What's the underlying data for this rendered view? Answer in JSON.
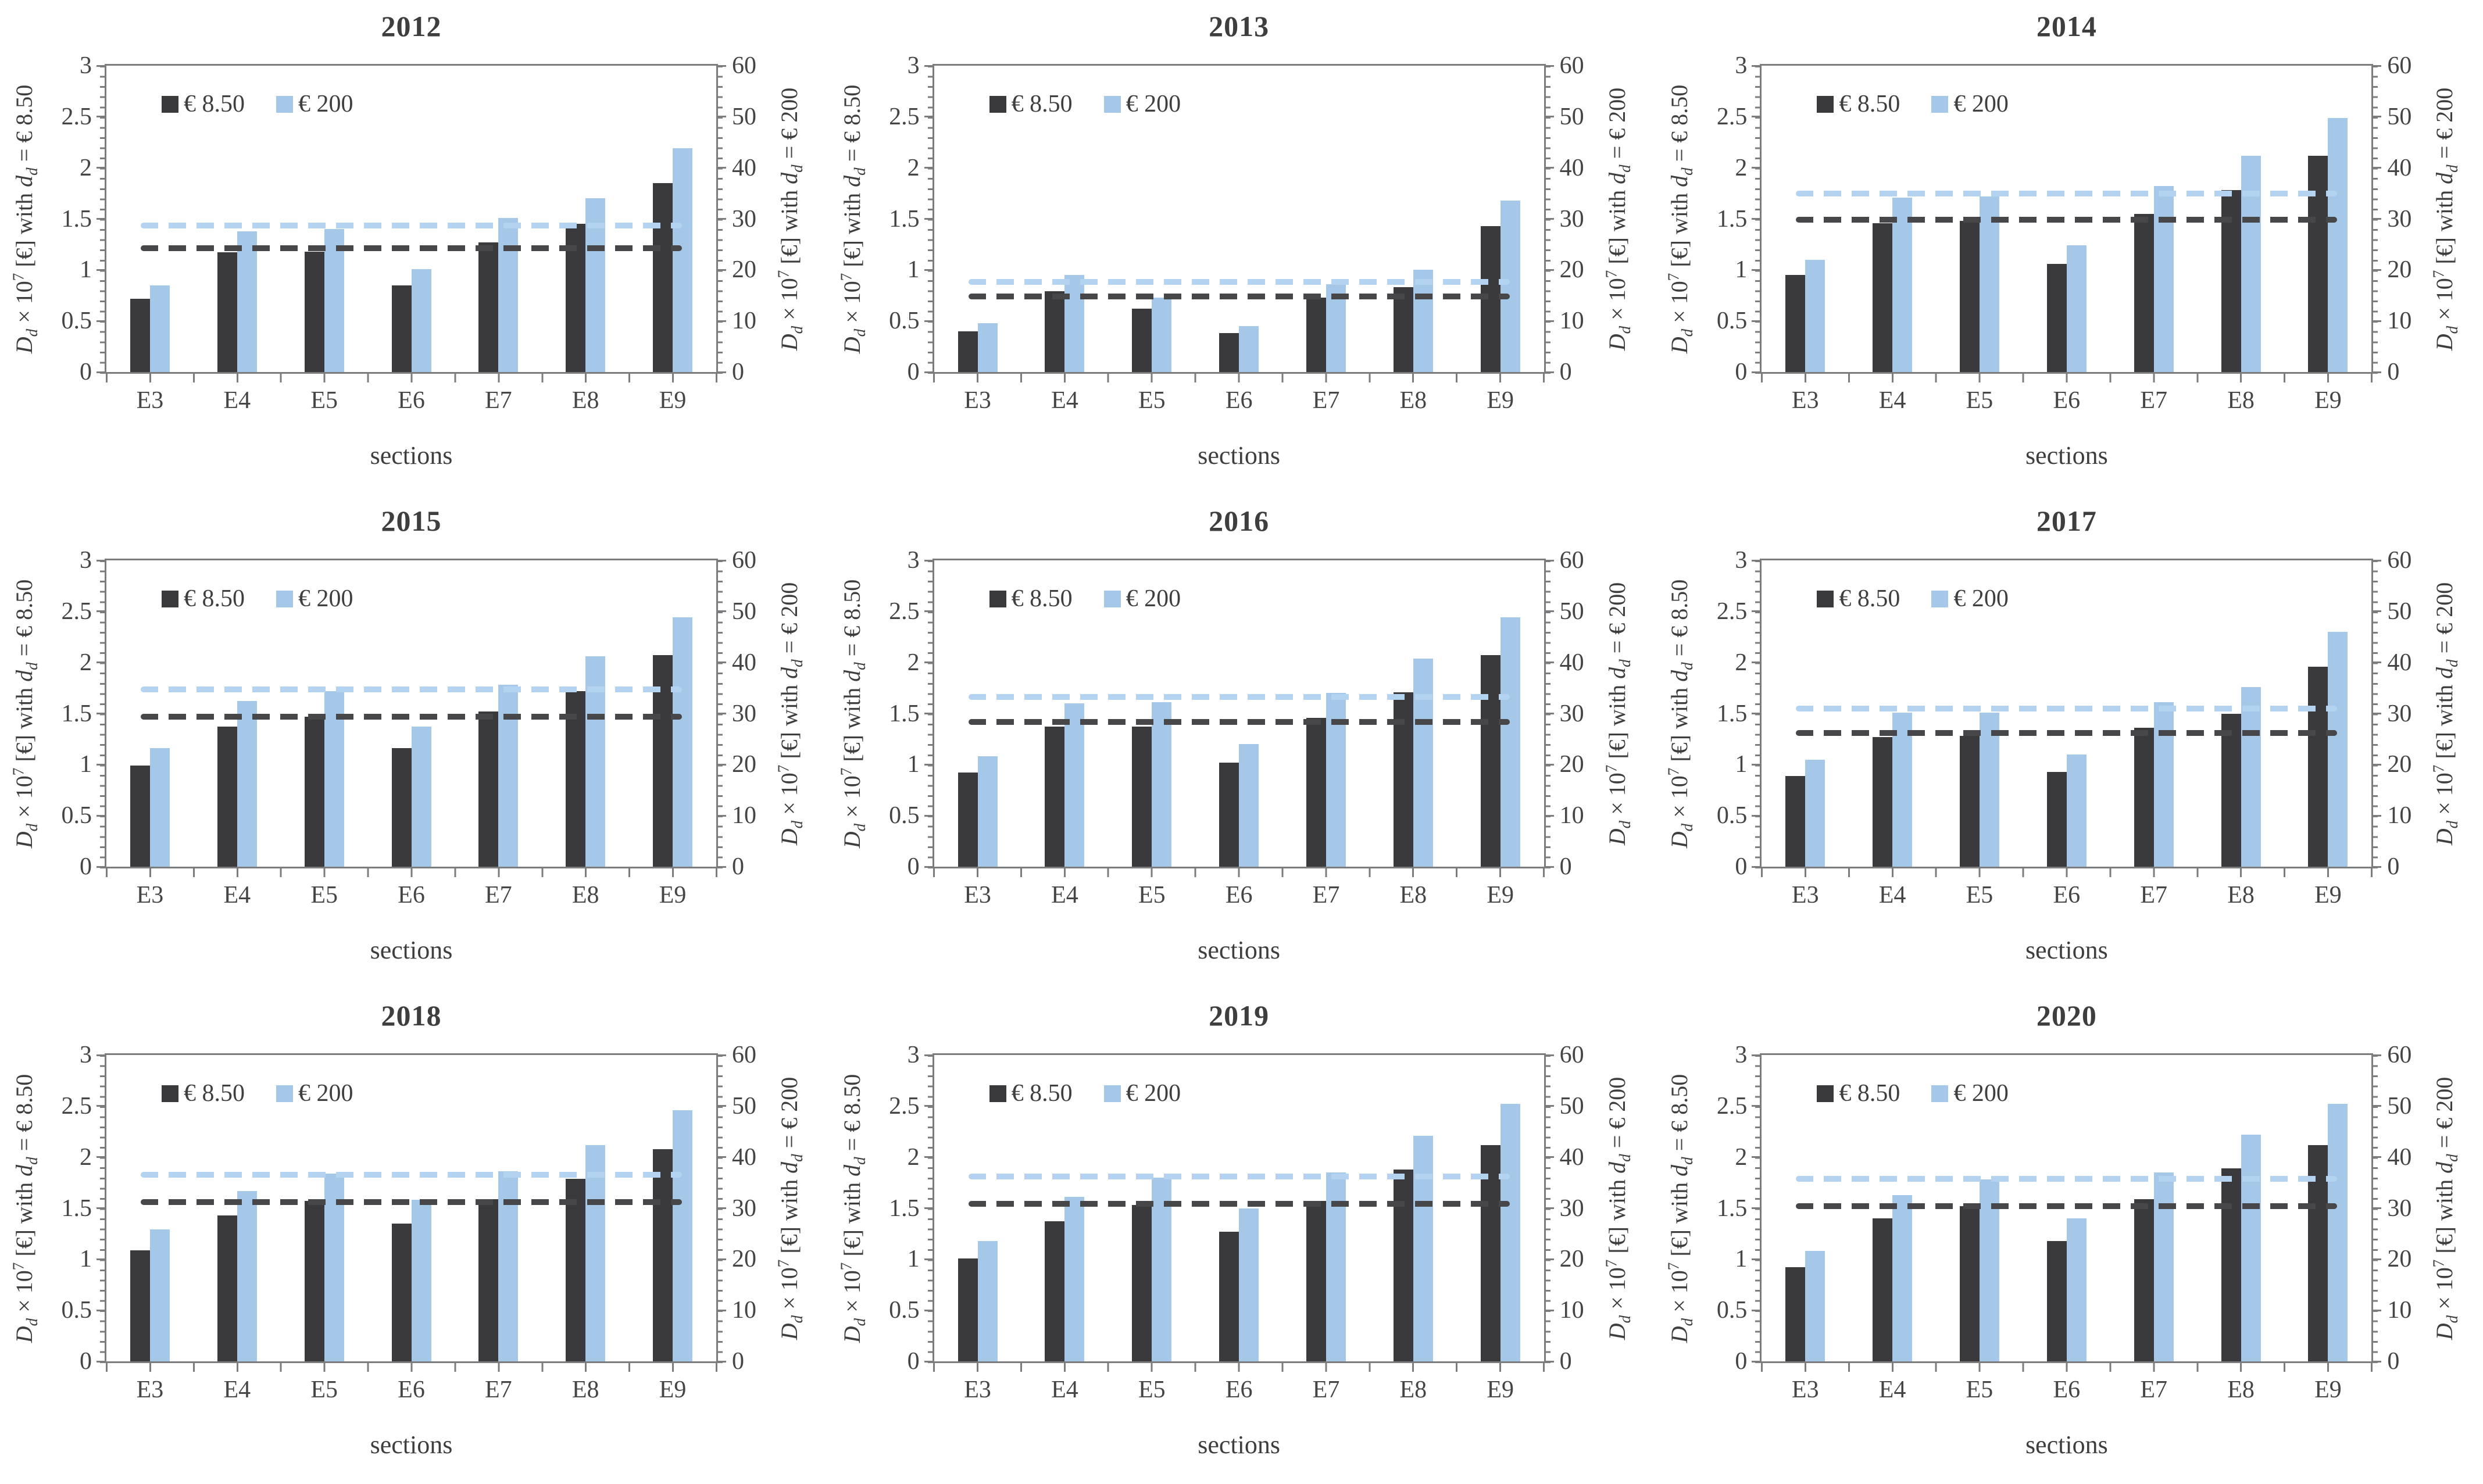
{
  "figure": {
    "grid": {
      "rows": 3,
      "cols": 3
    },
    "legend": {
      "items": [
        {
          "label": "€ 8.50",
          "swatch": "dark_bar"
        },
        {
          "label": "€ 200",
          "swatch": "blue_bar"
        }
      ]
    },
    "axes": {
      "left": {
        "label": "D_d × 10^7 [€] with d_d = € 8.50",
        "ticks": [
          3,
          2.5,
          2,
          1.5,
          1,
          0.5,
          0
        ],
        "range": [
          0,
          3
        ],
        "minor_step": 0.1
      },
      "right": {
        "label": "D_d × 10^7 [€] with d_d = € 200",
        "ticks": [
          60,
          50,
          40,
          30,
          20,
          10,
          0
        ],
        "range": [
          0,
          60
        ],
        "minor_step": 2
      },
      "x": {
        "label": "sections",
        "categories": [
          "E3",
          "E4",
          "E5",
          "E6",
          "E7",
          "E8",
          "E9"
        ]
      }
    },
    "colors": {
      "dark_bar": "#3a3a3c",
      "blue_bar": "#a5c8e9",
      "dark_dash": "#47474a",
      "blue_dash": "#b3d3f0",
      "axis": "#7b7c7e",
      "text": "#3e3e3e"
    }
  },
  "chart_data": [
    {
      "type": "bar",
      "title": "2012",
      "categories": [
        "E3",
        "E4",
        "E5",
        "E6",
        "E7",
        "E8",
        "E9"
      ],
      "series": [
        {
          "name": "€ 8.50",
          "axis": "left",
          "values": [
            0.72,
            1.17,
            1.18,
            0.85,
            1.27,
            1.45,
            1.85
          ]
        },
        {
          "name": "€ 200",
          "axis": "right",
          "values": [
            17.0,
            27.6,
            28.0,
            20.2,
            30.2,
            34.0,
            43.8
          ]
        }
      ],
      "mean_lines": [
        {
          "series": "€ 8.50",
          "axis": "left",
          "value": 1.21
        },
        {
          "series": "€ 200",
          "axis": "right",
          "value": 28.7
        }
      ]
    },
    {
      "type": "bar",
      "title": "2013",
      "categories": [
        "E3",
        "E4",
        "E5",
        "E6",
        "E7",
        "E8",
        "E9"
      ],
      "series": [
        {
          "name": "€ 8.50",
          "axis": "left",
          "values": [
            0.4,
            0.79,
            0.62,
            0.38,
            0.73,
            0.83,
            1.43
          ]
        },
        {
          "name": "€ 200",
          "axis": "right",
          "values": [
            9.6,
            19.0,
            14.6,
            9.0,
            17.2,
            20.0,
            33.6
          ]
        }
      ],
      "mean_lines": [
        {
          "series": "€ 8.50",
          "axis": "left",
          "value": 0.74
        },
        {
          "series": "€ 200",
          "axis": "right",
          "value": 17.6
        }
      ]
    },
    {
      "type": "bar",
      "title": "2014",
      "categories": [
        "E3",
        "E4",
        "E5",
        "E6",
        "E7",
        "E8",
        "E9"
      ],
      "series": [
        {
          "name": "€ 8.50",
          "axis": "left",
          "values": [
            0.95,
            1.46,
            1.48,
            1.06,
            1.55,
            1.78,
            2.12
          ]
        },
        {
          "name": "€ 200",
          "axis": "right",
          "values": [
            22.0,
            34.2,
            34.4,
            24.8,
            36.4,
            42.4,
            49.8
          ]
        }
      ],
      "mean_lines": [
        {
          "series": "€ 8.50",
          "axis": "left",
          "value": 1.49
        },
        {
          "series": "€ 200",
          "axis": "right",
          "value": 34.9
        }
      ]
    },
    {
      "type": "bar",
      "title": "2015",
      "categories": [
        "E3",
        "E4",
        "E5",
        "E6",
        "E7",
        "E8",
        "E9"
      ],
      "series": [
        {
          "name": "€ 8.50",
          "axis": "left",
          "values": [
            0.99,
            1.37,
            1.47,
            1.16,
            1.52,
            1.72,
            2.07
          ]
        },
        {
          "name": "€ 200",
          "axis": "right",
          "values": [
            23.2,
            32.4,
            34.4,
            27.4,
            35.6,
            41.2,
            48.8
          ]
        }
      ],
      "mean_lines": [
        {
          "series": "€ 8.50",
          "axis": "left",
          "value": 1.47
        },
        {
          "series": "€ 200",
          "axis": "right",
          "value": 34.7
        }
      ]
    },
    {
      "type": "bar",
      "title": "2016",
      "categories": [
        "E3",
        "E4",
        "E5",
        "E6",
        "E7",
        "E8",
        "E9"
      ],
      "series": [
        {
          "name": "€ 8.50",
          "axis": "left",
          "values": [
            0.92,
            1.37,
            1.37,
            1.02,
            1.46,
            1.71,
            2.07
          ]
        },
        {
          "name": "€ 200",
          "axis": "right",
          "values": [
            21.6,
            32.0,
            32.2,
            24.0,
            34.0,
            40.8,
            48.8
          ]
        }
      ],
      "mean_lines": [
        {
          "series": "€ 8.50",
          "axis": "left",
          "value": 1.42
        },
        {
          "series": "€ 200",
          "axis": "right",
          "value": 33.3
        }
      ]
    },
    {
      "type": "bar",
      "title": "2017",
      "categories": [
        "E3",
        "E4",
        "E5",
        "E6",
        "E7",
        "E8",
        "E9"
      ],
      "series": [
        {
          "name": "€ 8.50",
          "axis": "left",
          "values": [
            0.89,
            1.27,
            1.28,
            0.93,
            1.36,
            1.5,
            1.96
          ]
        },
        {
          "name": "€ 200",
          "axis": "right",
          "values": [
            21.0,
            30.2,
            30.2,
            22.0,
            32.2,
            35.2,
            46.0
          ]
        }
      ],
      "mean_lines": [
        {
          "series": "€ 8.50",
          "axis": "left",
          "value": 1.31
        },
        {
          "series": "€ 200",
          "axis": "right",
          "value": 31.0
        }
      ]
    },
    {
      "type": "bar",
      "title": "2018",
      "categories": [
        "E3",
        "E4",
        "E5",
        "E6",
        "E7",
        "E8",
        "E9"
      ],
      "series": [
        {
          "name": "€ 8.50",
          "axis": "left",
          "values": [
            1.09,
            1.43,
            1.57,
            1.35,
            1.59,
            1.79,
            2.08
          ]
        },
        {
          "name": "€ 200",
          "axis": "right",
          "values": [
            25.8,
            33.4,
            36.8,
            31.6,
            37.2,
            42.4,
            49.2
          ]
        }
      ],
      "mean_lines": [
        {
          "series": "€ 8.50",
          "axis": "left",
          "value": 1.56
        },
        {
          "series": "€ 200",
          "axis": "right",
          "value": 36.6
        }
      ]
    },
    {
      "type": "bar",
      "title": "2019",
      "categories": [
        "E3",
        "E4",
        "E5",
        "E6",
        "E7",
        "E8",
        "E9"
      ],
      "series": [
        {
          "name": "€ 8.50",
          "axis": "left",
          "values": [
            1.01,
            1.37,
            1.53,
            1.27,
            1.57,
            1.88,
            2.12
          ]
        },
        {
          "name": "€ 200",
          "axis": "right",
          "values": [
            23.6,
            32.2,
            36.0,
            30.0,
            37.0,
            44.2,
            50.4
          ]
        }
      ],
      "mean_lines": [
        {
          "series": "€ 8.50",
          "axis": "left",
          "value": 1.54
        },
        {
          "series": "€ 200",
          "axis": "right",
          "value": 36.2
        }
      ]
    },
    {
      "type": "bar",
      "title": "2020",
      "categories": [
        "E3",
        "E4",
        "E5",
        "E6",
        "E7",
        "E8",
        "E9"
      ],
      "series": [
        {
          "name": "€ 8.50",
          "axis": "left",
          "values": [
            0.92,
            1.4,
            1.52,
            1.18,
            1.59,
            1.89,
            2.12
          ]
        },
        {
          "name": "€ 200",
          "axis": "right",
          "values": [
            21.6,
            32.6,
            35.6,
            28.0,
            37.0,
            44.4,
            50.4
          ]
        }
      ],
      "mean_lines": [
        {
          "series": "€ 8.50",
          "axis": "left",
          "value": 1.52
        },
        {
          "series": "€ 200",
          "axis": "right",
          "value": 35.7
        }
      ]
    }
  ]
}
